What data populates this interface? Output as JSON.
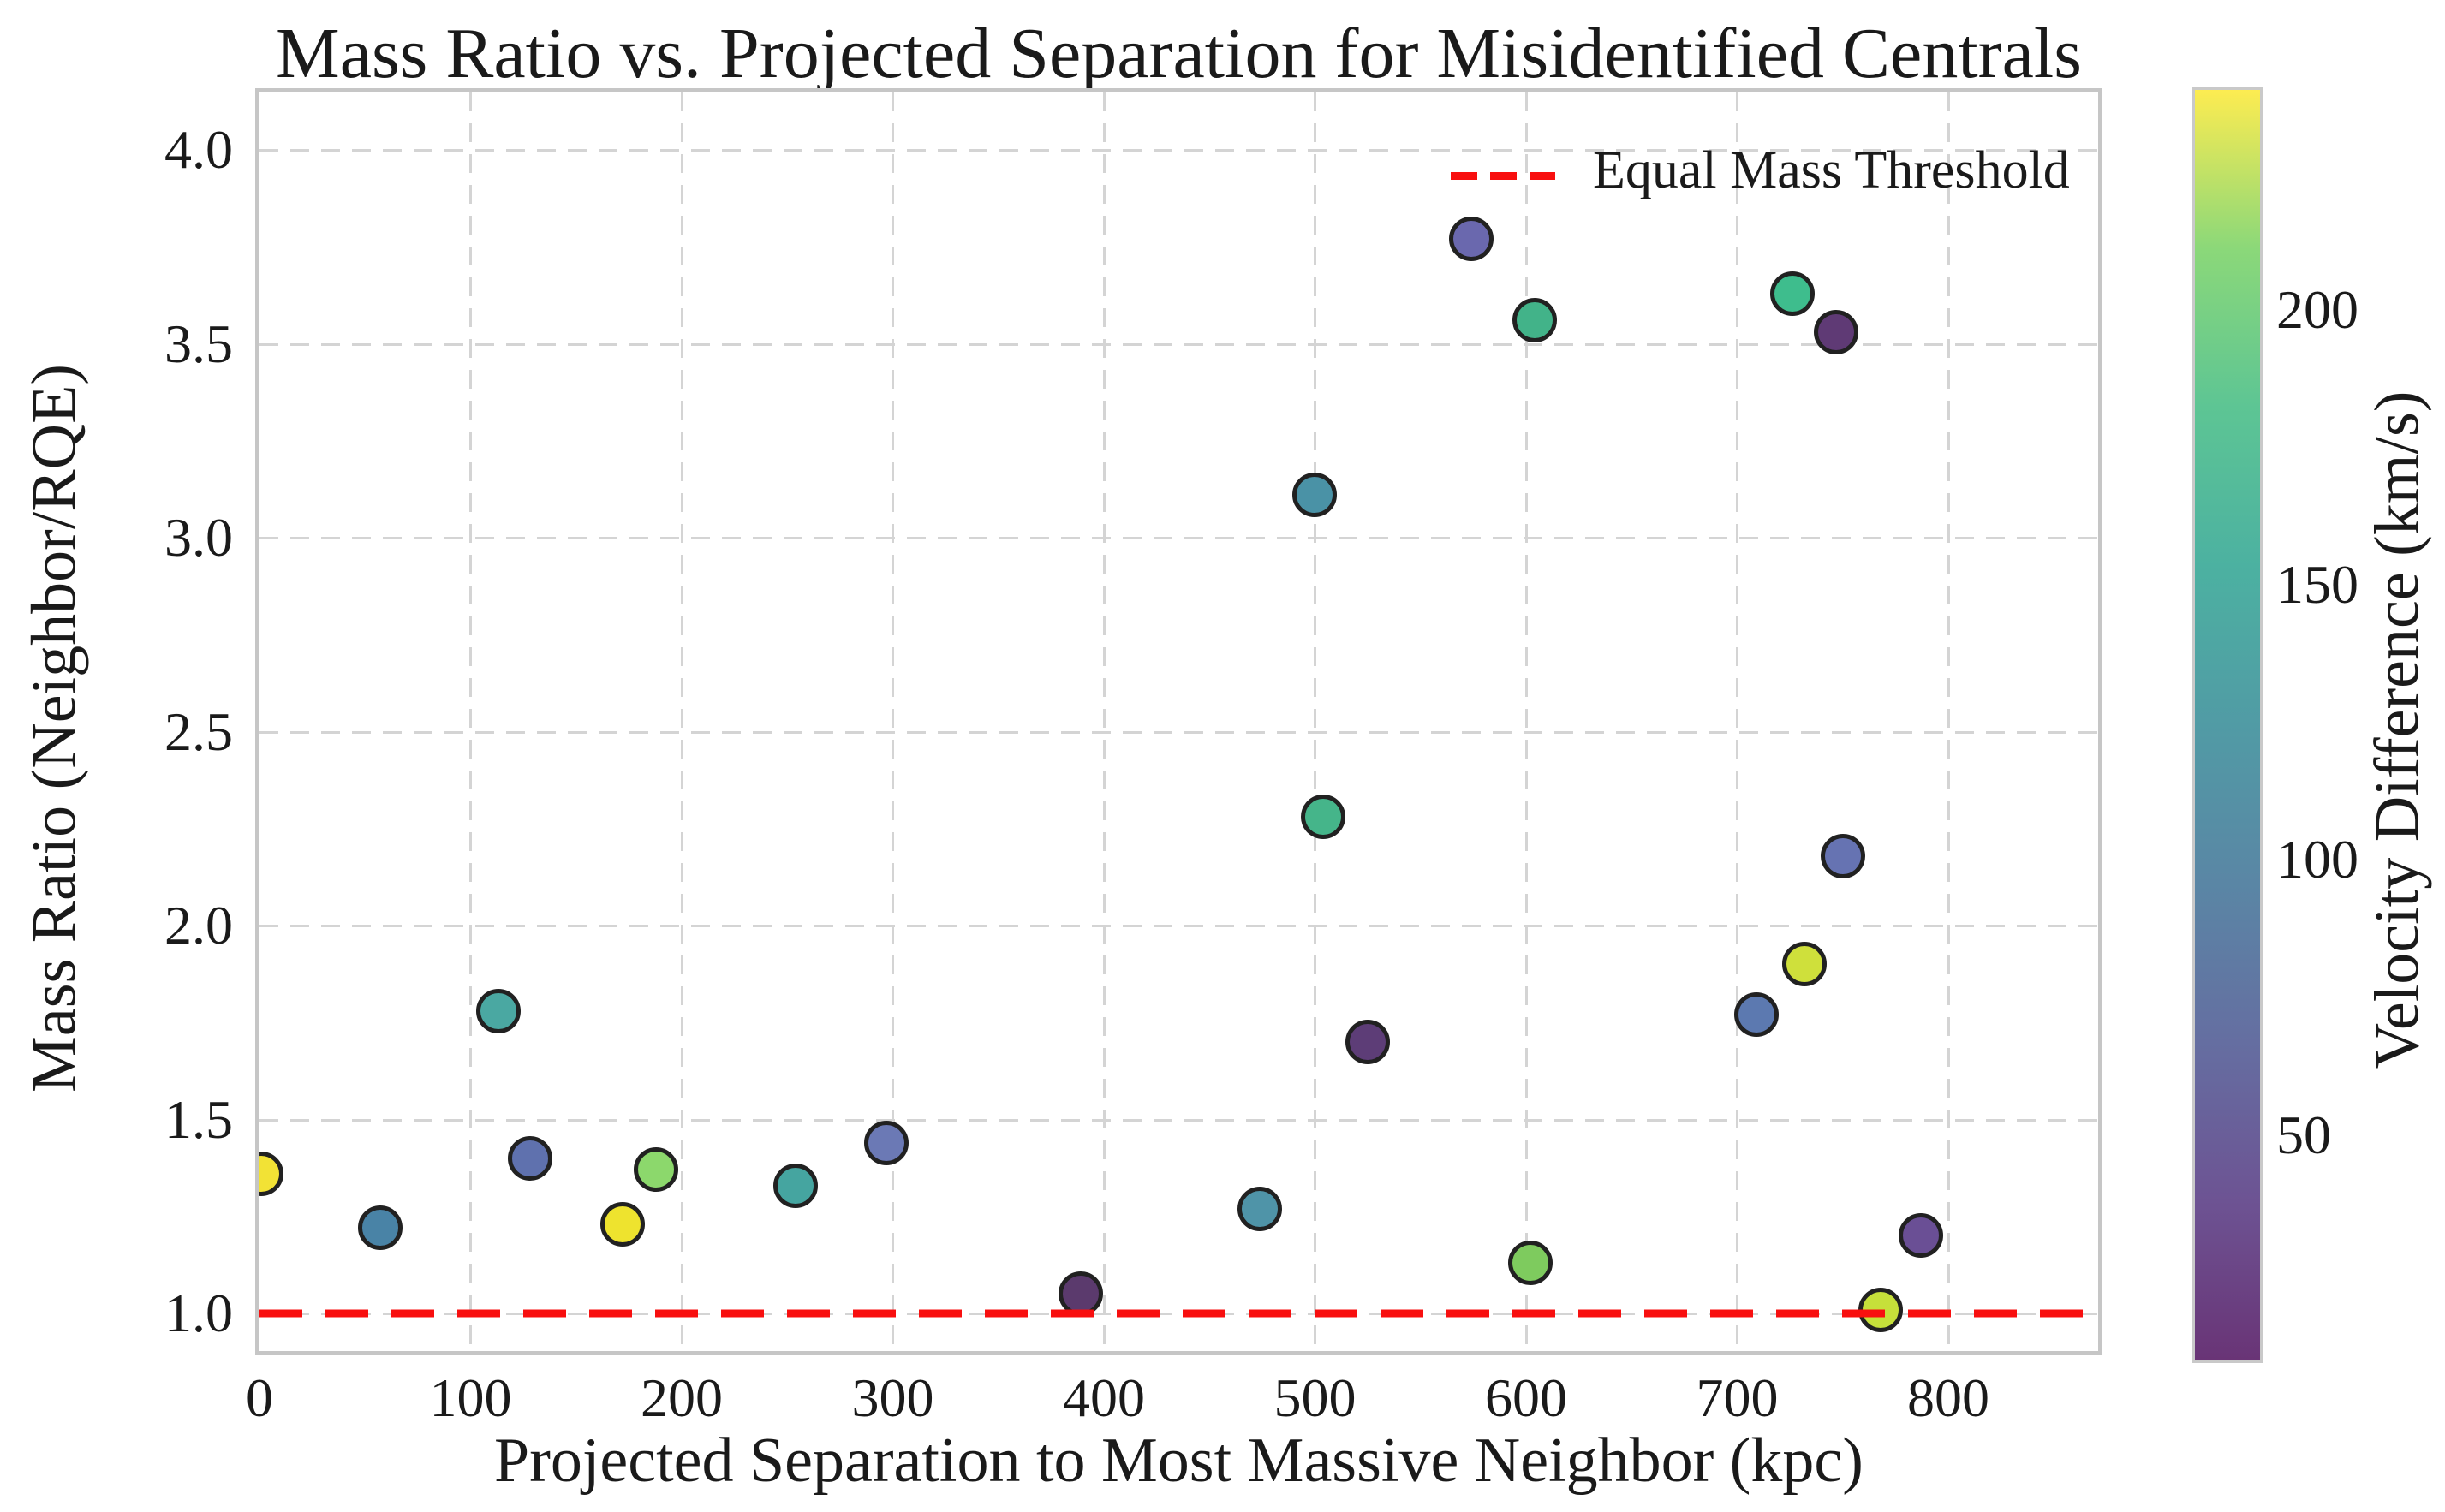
{
  "chart_data": {
    "type": "scatter",
    "title": "Mass Ratio vs. Projected Separation for Misidentified Centrals",
    "xlabel": "Projected Separation to Most Massive Neighbor (kpc)",
    "ylabel": "Mass Ratio (Neighbor/RQE)",
    "xlim": [
      0,
      871
    ],
    "ylim": [
      0.903,
      4.148
    ],
    "x_ticks": [
      0,
      100,
      200,
      300,
      400,
      500,
      600,
      700,
      800
    ],
    "y_ticks": [
      1.0,
      1.5,
      2.0,
      2.5,
      3.0,
      3.5,
      4.0
    ],
    "grid": true,
    "threshold": {
      "label": "Equal Mass Threshold",
      "y": 1.0,
      "color": "#f80f0f",
      "style": "dashed"
    },
    "legend_position": "upper right",
    "colorbar": {
      "label": "Velocity Difference (km/s)",
      "min": 9,
      "max": 240,
      "ticks": [
        50,
        100,
        150,
        200
      ],
      "colormap": "viridis",
      "gradient_bottom_to_top": [
        "#693476",
        "#6d5393",
        "#656ea1",
        "#5a86a5",
        "#519ba5",
        "#4cb1a1",
        "#5dc594",
        "#8bd879",
        "#fdec51"
      ]
    },
    "points": [
      {
        "x": 1,
        "y": 1.36,
        "velocity": 235,
        "color": "#f2e235"
      },
      {
        "x": 57,
        "y": 1.22,
        "velocity": 90,
        "color": "#4983a6"
      },
      {
        "x": 113,
        "y": 1.78,
        "velocity": 120,
        "color": "#4aa8a2"
      },
      {
        "x": 128,
        "y": 1.4,
        "velocity": 70,
        "color": "#5f71ae"
      },
      {
        "x": 172,
        "y": 1.23,
        "velocity": 230,
        "color": "#eee32e"
      },
      {
        "x": 188,
        "y": 1.37,
        "velocity": 200,
        "color": "#8cd86c"
      },
      {
        "x": 254,
        "y": 1.33,
        "velocity": 125,
        "color": "#45a5a0"
      },
      {
        "x": 297,
        "y": 1.44,
        "velocity": 68,
        "color": "#6b79b5"
      },
      {
        "x": 389,
        "y": 1.05,
        "velocity": 15,
        "color": "#5b3a6d"
      },
      {
        "x": 474,
        "y": 1.27,
        "velocity": 105,
        "color": "#4f94a8"
      },
      {
        "x": 500,
        "y": 3.11,
        "velocity": 108,
        "color": "#4a92a6"
      },
      {
        "x": 504,
        "y": 2.28,
        "velocity": 160,
        "color": "#45b58a"
      },
      {
        "x": 525,
        "y": 1.7,
        "velocity": 25,
        "color": "#5d3d77"
      },
      {
        "x": 574,
        "y": 3.77,
        "velocity": 55,
        "color": "#6a68ae"
      },
      {
        "x": 602,
        "y": 1.13,
        "velocity": 195,
        "color": "#7ecb5e"
      },
      {
        "x": 604,
        "y": 3.56,
        "velocity": 155,
        "color": "#42b389"
      },
      {
        "x": 709,
        "y": 1.77,
        "velocity": 75,
        "color": "#5c79b0"
      },
      {
        "x": 726,
        "y": 3.63,
        "velocity": 150,
        "color": "#3ebd8d"
      },
      {
        "x": 732,
        "y": 1.9,
        "velocity": 220,
        "color": "#cfe03b"
      },
      {
        "x": 747,
        "y": 3.53,
        "velocity": 20,
        "color": "#5f3a75"
      },
      {
        "x": 750,
        "y": 2.18,
        "velocity": 65,
        "color": "#6673b2"
      },
      {
        "x": 768,
        "y": 1.01,
        "velocity": 215,
        "color": "#c6e03a"
      },
      {
        "x": 787,
        "y": 1.2,
        "velocity": 35,
        "color": "#6a4f95"
      }
    ]
  }
}
